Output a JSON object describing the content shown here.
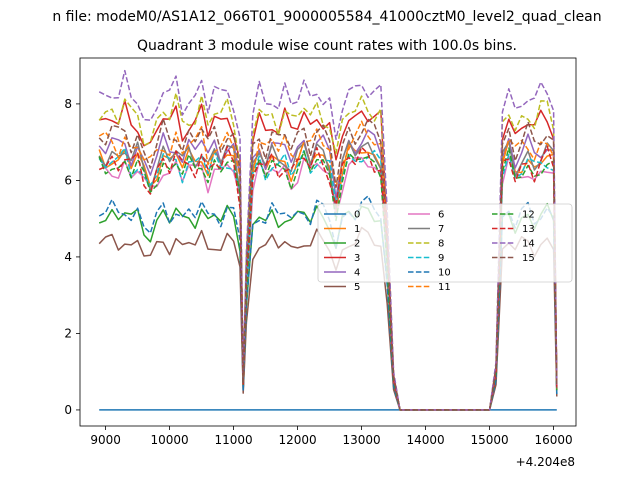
{
  "chart_data": {
    "type": "line",
    "suptitle": "n file: modeM0/AS1A12_066T01_9000005584_41000cztM0_level2_quad_clean",
    "title": "Quadrant 3 module wise count rates with 100.0s bins.",
    "x_offset_label": "+4.204e8",
    "xlim": [
      8600,
      16350
    ],
    "ylim": [
      -0.42,
      9.2
    ],
    "x_ticks": [
      9000,
      10000,
      11000,
      12000,
      13000,
      14000,
      15000,
      16000
    ],
    "x_tick_labels": [
      "9000",
      "10000",
      "11000",
      "12000",
      "13000",
      "14000",
      "15000",
      "16000"
    ],
    "y_ticks": [
      0,
      2,
      4,
      6,
      8
    ],
    "y_tick_labels": [
      "0",
      "2",
      "4",
      "6",
      "8"
    ],
    "legend_position": "center-right",
    "legend_columns": 3,
    "series": [
      {
        "name": "0",
        "color": "#1f77b4",
        "style": "solid",
        "level": 0.0
      },
      {
        "name": "1",
        "color": "#ff7f0e",
        "style": "solid",
        "level": 6.6
      },
      {
        "name": "2",
        "color": "#2ca02c",
        "style": "solid",
        "level": 5.1
      },
      {
        "name": "3",
        "color": "#d62728",
        "style": "solid",
        "level": 7.6
      },
      {
        "name": "4",
        "color": "#9467bd",
        "style": "solid",
        "level": 6.9
      },
      {
        "name": "5",
        "color": "#8c564b",
        "style": "solid",
        "level": 4.4
      },
      {
        "name": "6",
        "color": "#e377c2",
        "style": "solid",
        "level": 6.3
      },
      {
        "name": "7",
        "color": "#7f7f7f",
        "style": "solid",
        "level": 6.7
      },
      {
        "name": "8",
        "color": "#bcbd22",
        "style": "dashed",
        "level": 7.8
      },
      {
        "name": "9",
        "color": "#17becf",
        "style": "dashed",
        "level": 6.5
      },
      {
        "name": "10",
        "color": "#1f77b4",
        "style": "dashed",
        "level": 5.2
      },
      {
        "name": "11",
        "color": "#ff7f0e",
        "style": "dashed",
        "level": 7.0
      },
      {
        "name": "12",
        "color": "#2ca02c",
        "style": "dashed",
        "level": 6.4
      },
      {
        "name": "13",
        "color": "#d62728",
        "style": "dashed",
        "level": 6.5
      },
      {
        "name": "14",
        "color": "#9467bd",
        "style": "dashed",
        "level": 8.3
      },
      {
        "name": "15",
        "color": "#8c564b",
        "style": "dashed",
        "level": 7.2
      }
    ],
    "time_profile": {
      "x": [
        8900,
        9000,
        9100,
        9200,
        9300,
        9400,
        9500,
        9600,
        9700,
        9800,
        9900,
        10000,
        10100,
        10200,
        10300,
        10400,
        10500,
        10600,
        10700,
        10800,
        10900,
        11000,
        11100,
        11150,
        11200,
        11300,
        11400,
        11500,
        11600,
        11700,
        11800,
        11900,
        12000,
        12100,
        12200,
        12300,
        12400,
        12500,
        12600,
        12700,
        12800,
        12900,
        13000,
        13100,
        13200,
        13300,
        13400,
        13500,
        13600,
        13700,
        14000,
        14500,
        15000,
        15100,
        15200,
        15300,
        15400,
        15500,
        15600,
        15700,
        15800,
        15900,
        16000,
        16050
      ],
      "factor": [
        1.0,
        0.99,
        1.01,
        0.98,
        1.02,
        0.97,
        1.0,
        0.93,
        0.9,
        0.96,
        1.01,
        0.97,
        1.02,
        0.96,
        1.0,
        0.98,
        1.03,
        0.95,
        1.0,
        0.97,
        1.02,
        0.99,
        0.86,
        0.1,
        0.5,
        0.93,
        1.0,
        0.96,
        1.01,
        0.97,
        1.0,
        0.95,
        0.98,
        1.02,
        0.97,
        1.03,
        1.0,
        0.96,
        0.82,
        0.95,
        1.01,
        1.0,
        1.04,
        1.03,
        1.0,
        0.98,
        0.62,
        0.12,
        0.0,
        0.0,
        0.0,
        0.0,
        0.0,
        0.15,
        0.96,
        1.02,
        0.94,
        0.98,
        1.0,
        0.95,
        0.99,
        1.01,
        0.97,
        0.08
      ]
    }
  }
}
